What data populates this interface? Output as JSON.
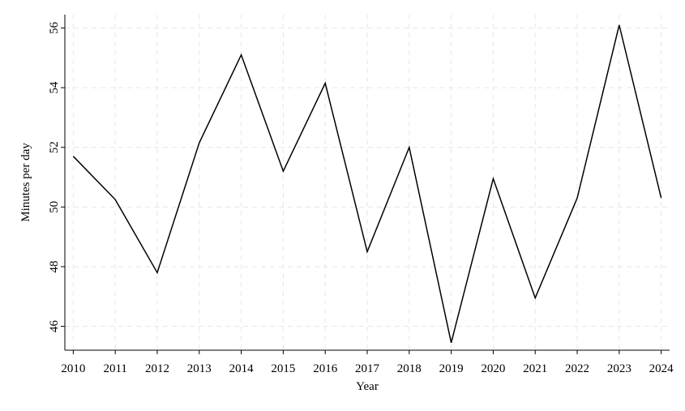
{
  "chart_data": {
    "type": "line",
    "title": "",
    "xlabel": "Year",
    "ylabel": "Minutes per day",
    "x": [
      2010,
      2011,
      2012,
      2013,
      2014,
      2015,
      2016,
      2017,
      2018,
      2019,
      2020,
      2021,
      2022,
      2023,
      2024
    ],
    "series": [
      {
        "values": [
          51.7,
          50.25,
          47.8,
          52.15,
          55.1,
          51.2,
          54.15,
          48.5,
          52.0,
          45.45,
          50.95,
          46.95,
          50.3,
          56.1,
          50.3
        ]
      }
    ],
    "xticks": [
      2010,
      2011,
      2012,
      2013,
      2014,
      2015,
      2016,
      2017,
      2018,
      2019,
      2020,
      2021,
      2022,
      2023,
      2024
    ],
    "yticks": [
      46,
      48,
      50,
      52,
      54,
      56
    ],
    "xlim": [
      2009.8,
      2024.2
    ],
    "ylim": [
      45.2,
      56.45
    ],
    "grid": true,
    "line_color": "#000000",
    "grid_color": "#e6e6e6"
  }
}
